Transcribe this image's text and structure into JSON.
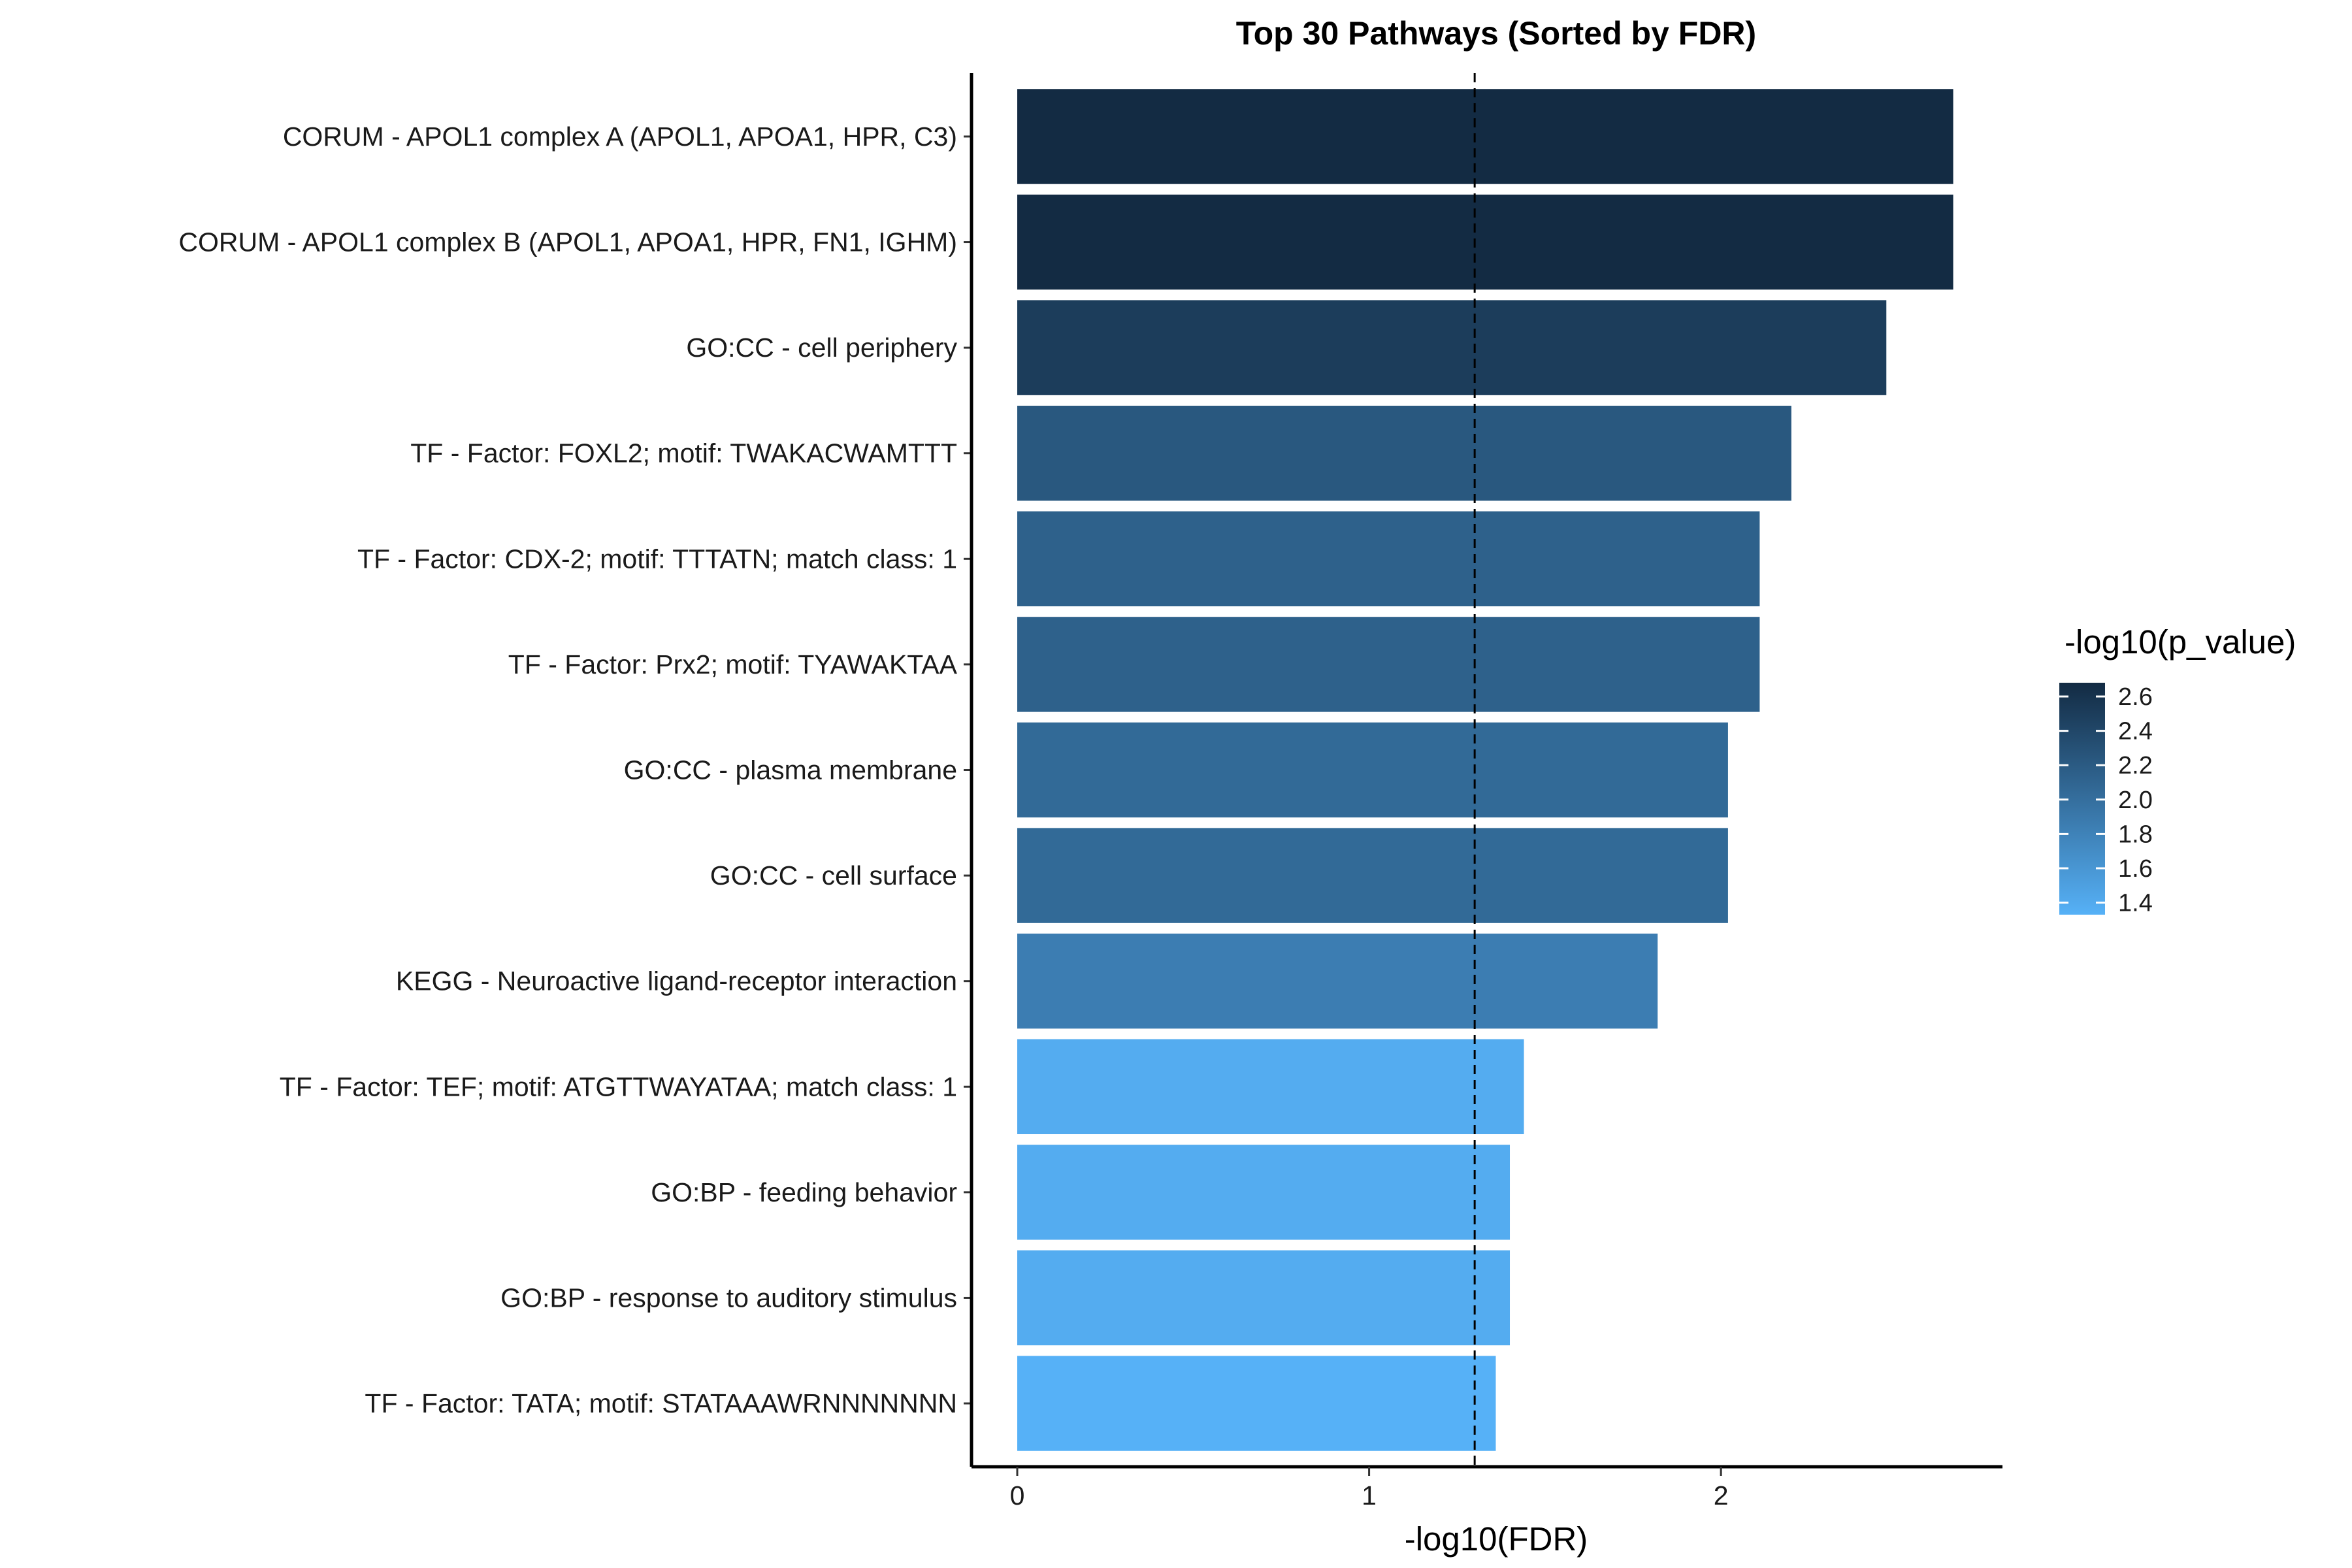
{
  "chart_data": {
    "type": "bar",
    "orientation": "horizontal",
    "title": "Top 30 Pathways (Sorted by FDR)",
    "xlabel": "-log10(FDR)",
    "ylabel": "",
    "xlim": [
      -0.13,
      2.8
    ],
    "xticks": [
      0,
      1,
      2
    ],
    "grid": false,
    "threshold_line": 1.3,
    "categories": [
      "CORUM - APOL1 complex A (APOL1, APOA1, HPR, C3)",
      "CORUM - APOL1 complex B (APOL1, APOA1, HPR, FN1, IGHM)",
      "GO:CC - cell periphery",
      "TF - Factor: FOXL2; motif: TWAKACWAMTTT",
      "TF - Factor: CDX-2; motif: TTTATN; match class: 1",
      "TF - Factor: Prx2; motif: TYAWAKTAA",
      "GO:CC - plasma membrane",
      "GO:CC - cell surface",
      "KEGG - Neuroactive ligand-receptor interaction",
      "TF - Factor: TEF; motif: ATGTTWAYATAA; match class: 1",
      "GO:BP - feeding behavior",
      "GO:BP - response to auditory stimulus",
      "TF - Factor: TATA; motif: STATAAAWRNNNNNNN"
    ],
    "values": [
      2.66,
      2.66,
      2.47,
      2.2,
      2.11,
      2.11,
      2.02,
      2.02,
      1.82,
      1.44,
      1.4,
      1.4,
      1.36
    ],
    "color_values": [
      2.68,
      2.68,
      2.5,
      2.23,
      2.14,
      2.14,
      2.05,
      2.05,
      1.85,
      1.38,
      1.38,
      1.38,
      1.33
    ],
    "legend": {
      "title": "-log10(p_value)",
      "placement": "right",
      "ticks": [
        2.6,
        2.4,
        2.2,
        2.0,
        1.8,
        1.6,
        1.4
      ],
      "tick_labels": [
        "2.6",
        "2.4",
        "2.2",
        "2.0",
        "1.8",
        "1.6",
        "1.4"
      ],
      "range": [
        1.33,
        2.68
      ],
      "color_low": "#56b1f7",
      "color_high": "#132b43"
    }
  }
}
